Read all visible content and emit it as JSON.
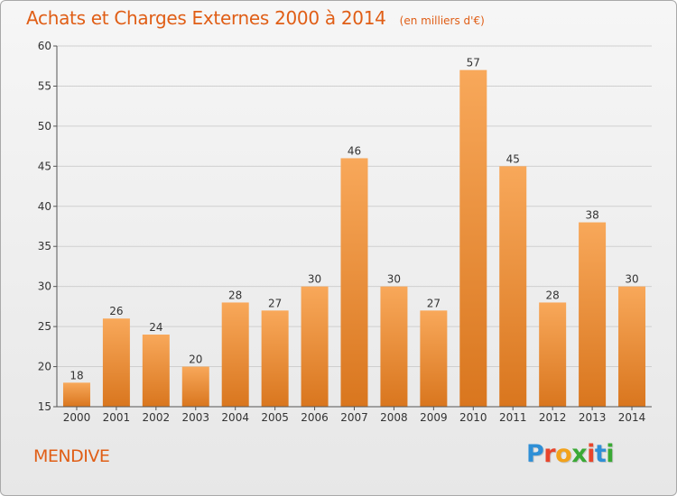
{
  "title": "Achats et Charges Externes 2000 à 2014",
  "unit": "(en milliers d'€)",
  "commune": "MENDIVE",
  "logo": {
    "text": "Proxiti",
    "letter_colors": [
      "#2f8fd6",
      "#e8452c",
      "#f2a21b",
      "#3aa935",
      "#e8452c",
      "#2f8fd6",
      "#3aa935"
    ]
  },
  "colors": {
    "title": "#e05e16",
    "bar_light": "#f8a85a",
    "bar_dark": "#d9761e",
    "grid": "#cfcfcf",
    "axis": "#555555"
  },
  "chart_data": {
    "type": "bar",
    "title": "Achats et Charges Externes 2000 à 2014",
    "categories": [
      "2000",
      "2001",
      "2002",
      "2003",
      "2004",
      "2005",
      "2006",
      "2007",
      "2008",
      "2009",
      "2010",
      "2011",
      "2012",
      "2013",
      "2014"
    ],
    "values": [
      18,
      26,
      24,
      20,
      28,
      27,
      30,
      46,
      30,
      27,
      57,
      45,
      28,
      38,
      30
    ],
    "ylim": [
      15,
      60
    ],
    "yticks": [
      15,
      20,
      25,
      30,
      35,
      40,
      45,
      50,
      55,
      60
    ],
    "grid": true,
    "legend": "none"
  }
}
